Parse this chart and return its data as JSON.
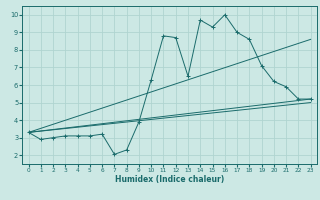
{
  "xlabel": "Humidex (Indice chaleur)",
  "bg_color": "#cce8e4",
  "grid_color": "#b0d4d0",
  "line_color": "#1a6b6b",
  "xlim": [
    -0.5,
    23.5
  ],
  "ylim": [
    1.5,
    10.5
  ],
  "xticks": [
    0,
    1,
    2,
    3,
    4,
    5,
    6,
    7,
    8,
    9,
    10,
    11,
    12,
    13,
    14,
    15,
    16,
    17,
    18,
    19,
    20,
    21,
    22,
    23
  ],
  "yticks": [
    2,
    3,
    4,
    5,
    6,
    7,
    8,
    9,
    10
  ],
  "line1_x": [
    0,
    1,
    2,
    3,
    4,
    5,
    6,
    7,
    8,
    9,
    10,
    11,
    12,
    13,
    14,
    15,
    16,
    17,
    18,
    19,
    20,
    21,
    22,
    23
  ],
  "line1_y": [
    3.3,
    2.9,
    3.0,
    3.1,
    3.1,
    3.1,
    3.2,
    2.05,
    2.3,
    3.9,
    6.3,
    8.8,
    8.7,
    6.5,
    9.7,
    9.3,
    10.0,
    9.0,
    8.6,
    7.1,
    6.2,
    5.9,
    5.2,
    5.2
  ],
  "line2_x": [
    0,
    23
  ],
  "line2_y": [
    3.3,
    8.6
  ],
  "line3_x": [
    0,
    23
  ],
  "line3_y": [
    3.3,
    5.2
  ],
  "line4_x": [
    0,
    23
  ],
  "line4_y": [
    3.3,
    5.0
  ]
}
